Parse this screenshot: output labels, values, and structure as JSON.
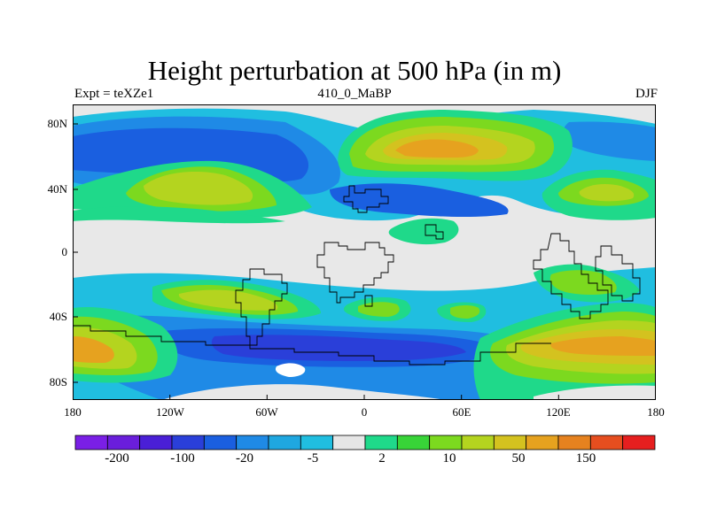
{
  "title": "Height perturbation at 500 hPa (in m)",
  "subtitle_left": "Expt = teXZe1",
  "subtitle_center": "410_0_MaBP",
  "subtitle_right": "DJF",
  "y_ticks": [
    "80N",
    "40N",
    "0",
    "40S",
    "80S"
  ],
  "x_ticks": [
    "180",
    "120W",
    "60W",
    "0",
    "60E",
    "120E",
    "180"
  ],
  "colorbar": {
    "colors": [
      "#7a1fe6",
      "#6a1edb",
      "#4a1fd6",
      "#2a3fd9",
      "#1a5fe0",
      "#1f8ae6",
      "#1fa7e0",
      "#20bee0",
      "#e6e6e6",
      "#1fd98a",
      "#38d438",
      "#7cd91f",
      "#b4d41f",
      "#d4c21f",
      "#e6a21f",
      "#e6821f",
      "#e64e1f",
      "#e61f1f"
    ],
    "labels": [
      "-200",
      "-100",
      "-20",
      "-5",
      "2",
      "10",
      "50",
      "150"
    ]
  },
  "map_colors": {
    "neutral": "#e8e8e8",
    "neg_light": "#20bee0",
    "neg_mid": "#1f8ae6",
    "neg_deep": "#1a5fe0",
    "neg_darker": "#2a3fd9",
    "pos_teal": "#1fd98a",
    "pos_green": "#7cd91f",
    "pos_yellow": "#b4d41f",
    "pos_gold": "#d4c21f",
    "pos_orange": "#e6a21f"
  }
}
